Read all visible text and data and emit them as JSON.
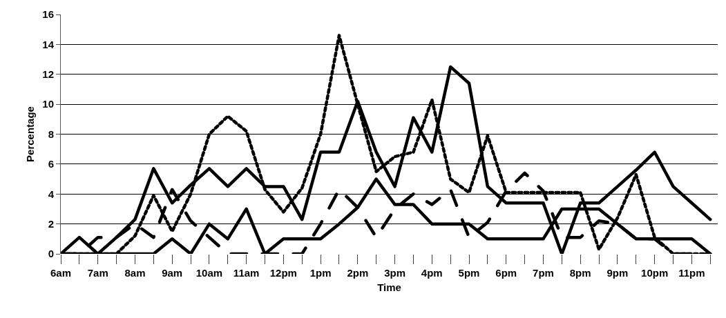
{
  "chart_data": {
    "type": "line",
    "xlabel": "Time",
    "ylabel": "Percentage",
    "categories": [
      "6am",
      null,
      "7am",
      null,
      "8am",
      null,
      "9am",
      null,
      "10am",
      null,
      "11am",
      null,
      "12pm",
      null,
      "1pm",
      null,
      "2pm",
      null,
      "3pm",
      null,
      "4pm",
      null,
      "5pm",
      null,
      "6pm",
      null,
      "7pm",
      null,
      "8pm",
      null,
      "9pm",
      null,
      "10pm",
      null,
      "11pm",
      null
    ],
    "ylim": [
      0,
      16
    ],
    "yticks": [
      0,
      2,
      4,
      6,
      8,
      10,
      12,
      14,
      16
    ],
    "grid": "y",
    "marker": "none",
    "series": [
      {
        "color": "#000000",
        "line_style": "solid",
        "values": [
          0,
          0,
          0,
          1.1,
          2.3,
          5.7,
          3.4,
          4.6,
          5.7,
          4.5,
          5.7,
          4.5,
          4.5,
          2.3,
          6.8,
          6.8,
          10.2,
          6.8,
          4.5,
          9.1,
          6.8,
          12.5,
          11.4,
          4.5,
          3.4,
          3.4,
          3.4,
          0,
          3.4,
          3.4,
          4.5,
          5.6,
          6.8,
          4.5,
          3.4,
          2.3
        ]
      },
      {
        "color": "#000000",
        "line_style": "solid",
        "values": [
          0,
          1.1,
          0,
          0,
          0,
          0,
          1,
          0,
          2,
          1,
          3,
          0,
          1,
          1,
          1,
          2,
          3.1,
          5,
          3.3,
          3.3,
          2,
          2,
          2,
          1,
          1,
          1,
          1,
          3,
          3,
          3,
          2,
          1,
          1,
          1,
          1,
          0
        ]
      },
      {
        "color": "#000000",
        "line_style": "dotted",
        "values": [
          0,
          0,
          0,
          0,
          1.2,
          3.9,
          1.5,
          4,
          8,
          9.2,
          8.2,
          4.3,
          2.8,
          4.4,
          8,
          14.6,
          10,
          5.5,
          6.5,
          6.8,
          10.3,
          5,
          4.1,
          7.9,
          4.1,
          4.1,
          4.1,
          4.1,
          4.1,
          0.3,
          2.4,
          5.3,
          1.1,
          0,
          0,
          0
        ]
      },
      {
        "color": "#000000",
        "line_style": "dashed",
        "values": [
          0,
          0,
          1.1,
          1.1,
          2,
          1.1,
          4.3,
          2.2,
          1.1,
          0,
          0,
          0,
          0,
          0,
          2,
          4.3,
          3.1,
          1.1,
          3,
          4,
          3.3,
          4.3,
          1.1,
          2.1,
          4.2,
          5.4,
          4.2,
          1.1,
          1.1,
          2.2,
          2,
          1,
          1,
          0,
          0,
          0
        ]
      }
    ]
  }
}
